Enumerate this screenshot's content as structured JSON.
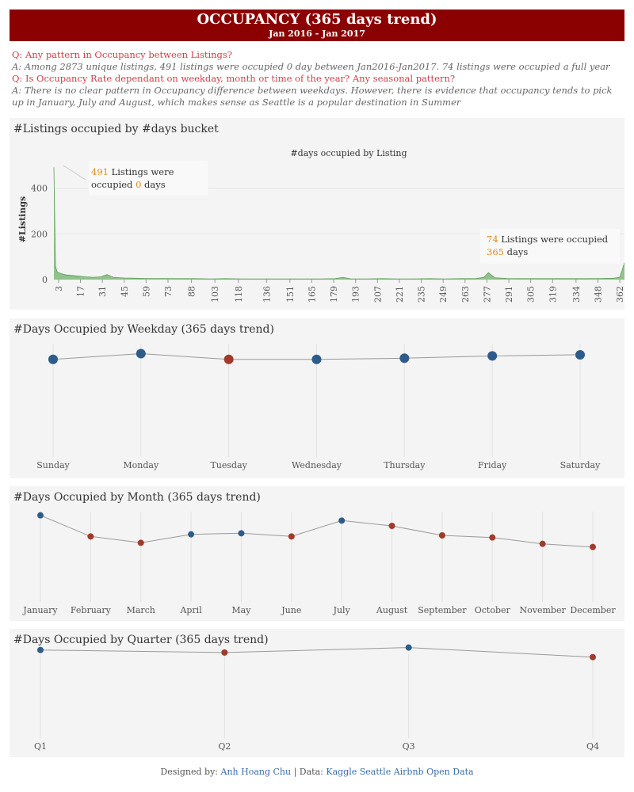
{
  "header": {
    "title": "OCCUPANCY (365 days trend)",
    "subtitle": "Jan 2016 - Jan 2017"
  },
  "qa": {
    "q1": "Q: Any pattern in Occupancy between Listings?",
    "a1": "A: Among 2873 unique listings, 491 listings were occupied 0 day between Jan2016-Jan2017. 74 listings were occupied a full year",
    "q2": "Q: Is Occupancy Rate dependant on weekday, month or time of the year? Any seasonal pattern?",
    "a2": "A: There is no clear pattern in Occupancy difference between weekdays. However, there is evidence that occupancy tends to pick up in January, July and August, which makes sense as Seattle is a popular destination  in Summer"
  },
  "colors": {
    "banner": "#8b0000",
    "question": "#c8424c",
    "blue": "#2e5c8a",
    "red": "#a23a2a",
    "area": "#7fb97a",
    "annot_number": "#e08a1e",
    "link": "#3a6ea5"
  },
  "panels": {
    "histogram": {
      "title": "#Listings occupied by #days bucket",
      "annotation_left": {
        "num": "491",
        "t1": " Listings were",
        "t2": "occupied ",
        "num2": "0",
        "t3": " days"
      },
      "annotation_right": {
        "num": "74",
        "t1": " Listings were occupied",
        "num2": "365",
        "t2": " days"
      }
    },
    "weekday": {
      "title": "#Days Occupied by Weekday (365 days trend)"
    },
    "month": {
      "title": "#Days Occupied by Month (365 days trend)"
    },
    "quarter": {
      "title": "#Days Occupied by Quarter (365 days trend)"
    }
  },
  "chart_data": [
    {
      "type": "area",
      "title": "#days occupied by Listing",
      "ylabel": "#Listings",
      "xlabel": "",
      "xlim": [
        0,
        365
      ],
      "ylim": [
        0,
        520
      ],
      "y_ticks": [
        0,
        200,
        400
      ],
      "x_ticks": [
        3,
        17,
        31,
        45,
        59,
        73,
        88,
        103,
        118,
        136,
        151,
        165,
        179,
        193,
        207,
        221,
        235,
        249,
        263,
        277,
        291,
        305,
        319,
        334,
        348,
        362
      ],
      "x": [
        0,
        1,
        2,
        3,
        5,
        8,
        12,
        16,
        20,
        25,
        30,
        34,
        38,
        45,
        52,
        60,
        70,
        80,
        90,
        100,
        110,
        120,
        130,
        140,
        150,
        160,
        170,
        180,
        185,
        190,
        200,
        210,
        220,
        230,
        240,
        250,
        260,
        270,
        275,
        278,
        282,
        290,
        300,
        310,
        320,
        330,
        340,
        350,
        358,
        362,
        365
      ],
      "y": [
        491,
        60,
        35,
        30,
        25,
        20,
        18,
        15,
        12,
        10,
        12,
        22,
        10,
        7,
        6,
        5,
        5,
        4,
        4,
        3,
        4,
        3,
        3,
        3,
        3,
        3,
        3,
        4,
        10,
        3,
        3,
        4,
        3,
        3,
        4,
        3,
        4,
        4,
        10,
        30,
        8,
        5,
        4,
        4,
        4,
        4,
        4,
        5,
        6,
        10,
        74
      ]
    },
    {
      "type": "scatter",
      "title": "",
      "categories": [
        "Sunday",
        "Monday",
        "Tuesday",
        "Wednesday",
        "Thursday",
        "Friday",
        "Saturday"
      ],
      "values": [
        217,
        218,
        217,
        217,
        217.2,
        217.6,
        217.8
      ],
      "highlight": [
        0,
        0,
        1,
        0,
        0,
        0,
        0
      ],
      "ylim": [
        200,
        220
      ]
    },
    {
      "type": "scatter",
      "title": "",
      "categories": [
        "January",
        "February",
        "March",
        "April",
        "May",
        "June",
        "July",
        "August",
        "September",
        "October",
        "November",
        "December"
      ],
      "values": [
        20.5,
        18.5,
        17.9,
        18.7,
        18.8,
        18.5,
        20,
        19.5,
        18.6,
        18.4,
        17.8,
        17.5
      ],
      "highlight": [
        0,
        1,
        1,
        0,
        0,
        1,
        0,
        1,
        1,
        1,
        1,
        1
      ],
      "ylim": [
        12,
        21
      ]
    },
    {
      "type": "scatter",
      "title": "",
      "categories": [
        "Q1",
        "Q2",
        "Q3",
        "Q4"
      ],
      "values": [
        57.5,
        56.8,
        58.2,
        55.5
      ],
      "highlight": [
        0,
        1,
        0,
        1
      ],
      "ylim": [
        30,
        59
      ]
    }
  ],
  "footer": {
    "prefix": "Designed by: ",
    "author": "Anh Hoang Chu",
    "sep": " | Data: ",
    "source": "Kaggle Seattle Airbnb Open Data"
  }
}
